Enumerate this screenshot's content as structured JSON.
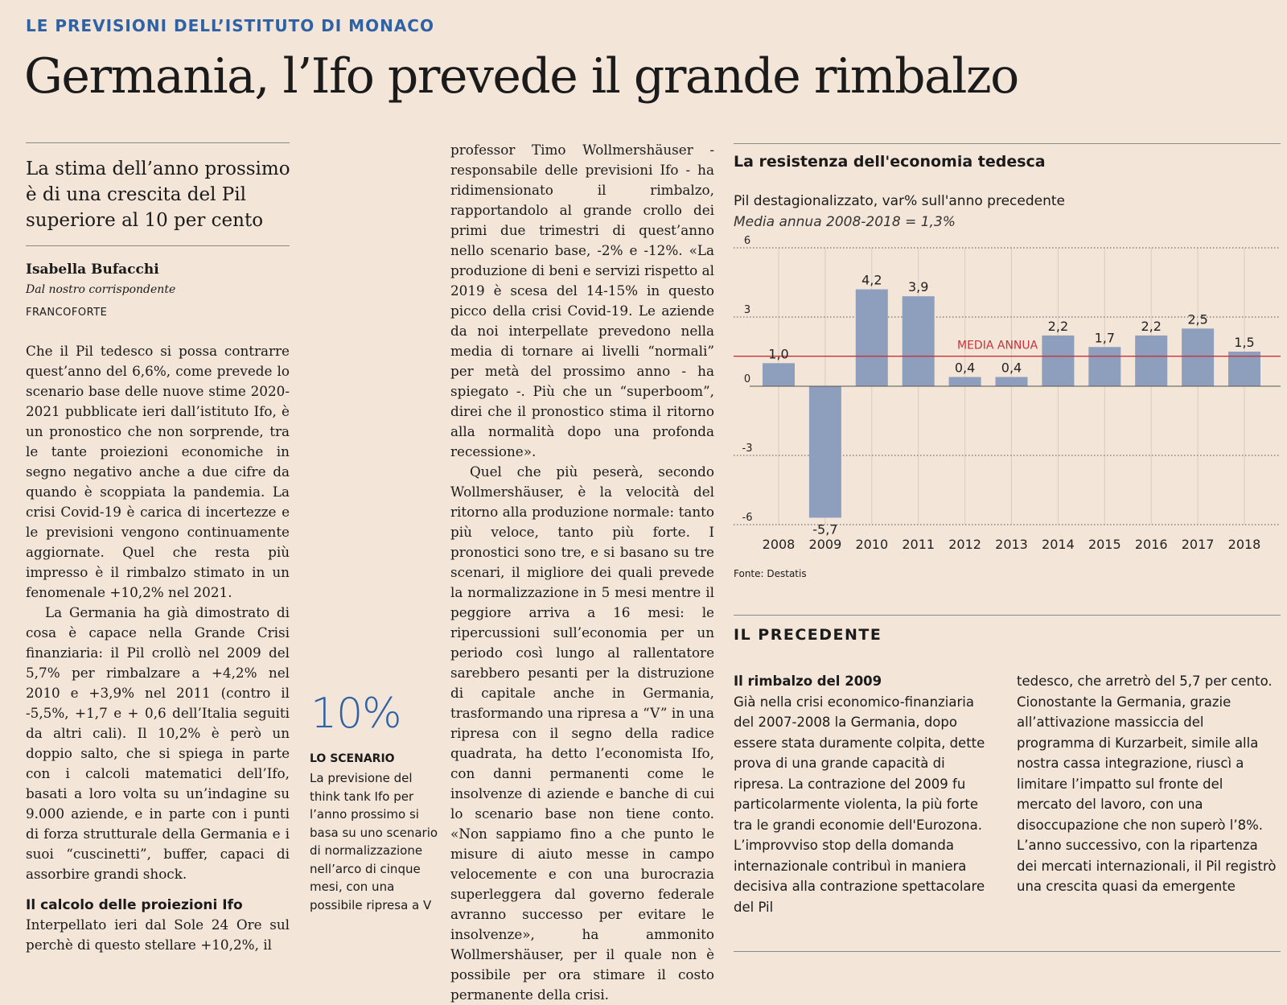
{
  "kicker": "LE PREVISIONI DELL’ISTITUTO DI MONACO",
  "headline": "Germania, l’Ifo prevede il grande rimbalzo",
  "subhead": "La stima dell’anno prossimo è di una crescita del Pil superiore al 10 per cento",
  "byline": {
    "author": "Isabella Bufacchi",
    "role": "Dal nostro corrispondente",
    "place": "FRANCOFORTE"
  },
  "article": {
    "col1_p1": "Che il Pil tedesco si possa contrarre quest’anno del 6,6%, come prevede lo scenario base delle nuove stime 2020-2021 pubblicate ieri dall’istituto Ifo, è un pronostico che non sorprende, tra le tante proiezioni economiche in segno negativo anche a due cifre da quando è scoppiata la pandemia. La crisi Covid-19 è carica di incertezze e le previsioni vengono continuamente aggiornate. Quel che resta più impresso è il rimbalzo stimato in un fenomenale +10,2% nel 2021.",
    "col1_p2": "La Germania ha già dimostrato di cosa è capace nella Grande Crisi finanziaria: il Pil crollò nel 2009 del 5,7% per rimbalzare a +4,2% nel 2010 e +3,9% nel 2011 (contro il -5,5%, +1,7 e + 0,6 dell’Italia seguiti da altri cali). Il 10,2% è però un doppio salto, che si spiega in parte con i calcoli matematici dell’Ifo, basati a loro volta su un’indagine su 9.000 aziende, e in parte con i punti di forza strutturale della Germania e i suoi “cuscinetti”, buffer, capaci di assorbire grandi shock.",
    "col1_heading": "Il calcolo delle proiezioni Ifo",
    "col1_p3": "Interpellato ieri dal Sole 24 Ore sul perchè di questo stellare +10,2%, il",
    "col2_p1": "professor Timo Wollmershäuser - responsabile delle previsioni Ifo - ha ridimensionato il rimbalzo, rapportandolo al grande crollo dei primi due trimestri di quest’anno nello scenario base, -2% e -12%. «La produzione di beni e servizi rispetto al 2019 è scesa del 14-15% in questo picco della crisi Covid-19. Le aziende da noi interpellate prevedono nella media di tornare ai livelli “normali” per metà del prossimo anno - ha spiegato -. Più che un “superboom”, direi che il pronostico stima il ritorno alla normalità dopo una profonda recessione».",
    "col2_p2": "Quel che più peserà, secondo Wollmershäuser, è la velocità del ritorno alla produzione normale: tanto più veloce, tanto più forte. I pronostici sono tre, e si basano su tre scenari, il migliore dei quali prevede la normalizzazione in 5 mesi mentre il peggiore arriva a 16 mesi: le ripercussioni sull’economia per un periodo così lungo al rallentatore sarebbero pesanti per la distruzione di capitale anche in Germania, trasformando una ripresa a “V” in una ripresa con il segno della radice quadrata, ha detto l’economista Ifo, con danni permanenti come le insolvenze di aziende e banche di cui lo scenario base non tiene conto. «Non sappiamo fino a che punto le misure di aiuto messe in campo velocemente e con una burocrazia superleggera dal governo federale avranno successo per evitare le insolvenze», ha ammonito Wollmershäuser, per il quale non è possibile per ora stimare il costo permanente della crisi."
  },
  "sidebar": {
    "big_number": "10%",
    "label": "LO SCENARIO",
    "text": "La previsione del think tank Ifo per l’anno prossimo si basa su uno scenario di normalizzazione nell’arco di cinque mesi, con una possibile ripresa a V"
  },
  "chart_header": {
    "title": "La resistenza dell'economia tedesca",
    "subtitle": "Pil destagionalizzato, var% sull'anno precedente",
    "note": "Media annua 2008-2018 = 1,3%",
    "source": "Fonte: Destatis",
    "average_label": "MEDIA ANNUA"
  },
  "chart_data": {
    "type": "bar",
    "categories": [
      "2008",
      "2009",
      "2010",
      "2011",
      "2012",
      "2013",
      "2014",
      "2015",
      "2016",
      "2017",
      "2018"
    ],
    "values": [
      1.0,
      -5.7,
      4.2,
      3.9,
      0.4,
      0.4,
      2.2,
      1.7,
      2.2,
      2.5,
      1.5
    ],
    "value_labels": [
      "1,0",
      "-5,7",
      "4,2",
      "3,9",
      "0,4",
      "0,4",
      "2,2",
      "1,7",
      "2,2",
      "2,5",
      "1,5"
    ],
    "yticks": [
      "6",
      "3",
      "0",
      "-3",
      "-6"
    ],
    "ylim": [
      -6,
      6
    ],
    "average": 1.3,
    "bar_color": "#8e9fbd",
    "average_color": "#c8313a",
    "grid": "dotted horizontal"
  },
  "precedente": {
    "title": "IL PRECEDENTE",
    "heading": "Il rimbalzo del 2009",
    "col1": "Già nella crisi economico-finanziaria del 2007-2008 la Germania, dopo essere stata duramente colpita, dette prova di una grande capacità di ripresa. La contrazione del 2009 fu particolarmente violenta, la più forte tra le grandi economie dell'Eurozona. L’improvviso stop della domanda internazionale contribuì in maniera decisiva alla contrazione spettacolare del Pil",
    "col2": "tedesco, che arretrò del 5,7 per cento. Cionostante la Germania, grazie all’attivazione massiccia del programma di Kurzarbeit, simile alla nostra cassa integrazione, riuscì a limitare l’impatto sul fronte del mercato del lavoro, con una disoccupazione che non superò l’8%. L’anno successivo, con la ripartenza dei mercati internazionali, il Pil registrò una crescita quasi da emergente"
  }
}
